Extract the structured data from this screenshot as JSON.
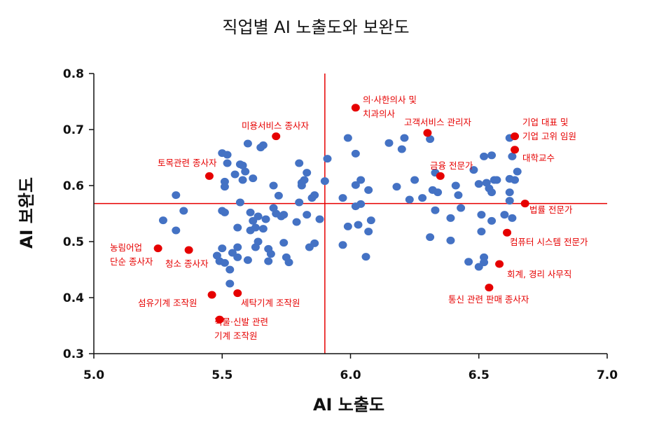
{
  "chart_data": {
    "type": "scatter",
    "title": "직업별 AI 노출도와 보완도",
    "xlabel": "AI 노출도",
    "ylabel": "AI 보완도",
    "xlim": [
      5.0,
      7.0
    ],
    "ylim": [
      0.3,
      0.8
    ],
    "x_ticks": [
      "5.0",
      "5.5",
      "6.0",
      "6.5",
      "7.0"
    ],
    "y_ticks": [
      "0.3",
      "0.4",
      "0.5",
      "0.6",
      "0.7",
      "0.8"
    ],
    "reference_lines": {
      "x": 5.9,
      "y": 0.568
    },
    "grid": false,
    "colors": {
      "points": "#4472c4",
      "highlight": "#e60000",
      "reference": "#e60000",
      "axis": "#111111"
    },
    "series": [
      {
        "points": [
          [
            5.27,
            0.538
          ],
          [
            5.32,
            0.583
          ],
          [
            5.32,
            0.52
          ],
          [
            5.35,
            0.555
          ],
          [
            5.48,
            0.475
          ],
          [
            5.49,
            0.465
          ],
          [
            5.5,
            0.555
          ],
          [
            5.5,
            0.488
          ],
          [
            5.5,
            0.658
          ],
          [
            5.51,
            0.552
          ],
          [
            5.51,
            0.607
          ],
          [
            5.51,
            0.598
          ],
          [
            5.51,
            0.462
          ],
          [
            5.52,
            0.655
          ],
          [
            5.52,
            0.64
          ],
          [
            5.53,
            0.45
          ],
          [
            5.53,
            0.425
          ],
          [
            5.54,
            0.48
          ],
          [
            5.55,
            0.62
          ],
          [
            5.56,
            0.525
          ],
          [
            5.56,
            0.49
          ],
          [
            5.56,
            0.472
          ],
          [
            5.57,
            0.638
          ],
          [
            5.57,
            0.57
          ],
          [
            5.58,
            0.636
          ],
          [
            5.58,
            0.61
          ],
          [
            5.59,
            0.625
          ],
          [
            5.6,
            0.675
          ],
          [
            5.6,
            0.467
          ],
          [
            5.61,
            0.52
          ],
          [
            5.61,
            0.552
          ],
          [
            5.62,
            0.613
          ],
          [
            5.62,
            0.537
          ],
          [
            5.63,
            0.49
          ],
          [
            5.63,
            0.525
          ],
          [
            5.64,
            0.5
          ],
          [
            5.64,
            0.545
          ],
          [
            5.65,
            0.668
          ],
          [
            5.66,
            0.672
          ],
          [
            5.66,
            0.523
          ],
          [
            5.67,
            0.54
          ],
          [
            5.68,
            0.487
          ],
          [
            5.68,
            0.465
          ],
          [
            5.69,
            0.478
          ],
          [
            5.7,
            0.56
          ],
          [
            5.7,
            0.6
          ],
          [
            5.71,
            0.55
          ],
          [
            5.72,
            0.582
          ],
          [
            5.73,
            0.545
          ],
          [
            5.74,
            0.548
          ],
          [
            5.74,
            0.498
          ],
          [
            5.75,
            0.472
          ],
          [
            5.76,
            0.463
          ],
          [
            5.79,
            0.535
          ],
          [
            5.8,
            0.57
          ],
          [
            5.8,
            0.64
          ],
          [
            5.81,
            0.605
          ],
          [
            5.81,
            0.6
          ],
          [
            5.82,
            0.61
          ],
          [
            5.83,
            0.623
          ],
          [
            5.83,
            0.548
          ],
          [
            5.84,
            0.49
          ],
          [
            5.85,
            0.578
          ],
          [
            5.86,
            0.583
          ],
          [
            5.86,
            0.497
          ],
          [
            5.88,
            0.54
          ],
          [
            5.9,
            0.608
          ],
          [
            5.91,
            0.648
          ],
          [
            5.97,
            0.578
          ],
          [
            5.97,
            0.494
          ],
          [
            5.99,
            0.527
          ],
          [
            5.99,
            0.685
          ],
          [
            6.02,
            0.657
          ],
          [
            6.02,
            0.601
          ],
          [
            6.02,
            0.563
          ],
          [
            6.03,
            0.53
          ],
          [
            6.04,
            0.61
          ],
          [
            6.04,
            0.567
          ],
          [
            6.06,
            0.473
          ],
          [
            6.07,
            0.518
          ],
          [
            6.07,
            0.592
          ],
          [
            6.08,
            0.538
          ],
          [
            6.15,
            0.676
          ],
          [
            6.18,
            0.598
          ],
          [
            6.2,
            0.665
          ],
          [
            6.21,
            0.685
          ],
          [
            6.23,
            0.575
          ],
          [
            6.25,
            0.61
          ],
          [
            6.28,
            0.578
          ],
          [
            6.31,
            0.683
          ],
          [
            6.31,
            0.508
          ],
          [
            6.32,
            0.592
          ],
          [
            6.33,
            0.623
          ],
          [
            6.33,
            0.556
          ],
          [
            6.34,
            0.588
          ],
          [
            6.39,
            0.542
          ],
          [
            6.39,
            0.502
          ],
          [
            6.41,
            0.6
          ],
          [
            6.42,
            0.583
          ],
          [
            6.43,
            0.56
          ],
          [
            6.46,
            0.464
          ],
          [
            6.48,
            0.628
          ],
          [
            6.5,
            0.455
          ],
          [
            6.5,
            0.603
          ],
          [
            6.51,
            0.518
          ],
          [
            6.51,
            0.548
          ],
          [
            6.52,
            0.472
          ],
          [
            6.52,
            0.463
          ],
          [
            6.52,
            0.652
          ],
          [
            6.53,
            0.605
          ],
          [
            6.54,
            0.595
          ],
          [
            6.55,
            0.537
          ],
          [
            6.55,
            0.654
          ],
          [
            6.55,
            0.588
          ],
          [
            6.56,
            0.61
          ],
          [
            6.57,
            0.61
          ],
          [
            6.6,
            0.548
          ],
          [
            6.62,
            0.685
          ],
          [
            6.62,
            0.588
          ],
          [
            6.62,
            0.573
          ],
          [
            6.62,
            0.612
          ],
          [
            6.63,
            0.652
          ],
          [
            6.63,
            0.542
          ],
          [
            6.64,
            0.61
          ],
          [
            6.65,
            0.625
          ]
        ]
      },
      {
        "highlighted": true,
        "points": [
          {
            "x": 5.25,
            "y": 0.488,
            "label": [
              "농림어업",
              "단순 종사자"
            ]
          },
          {
            "x": 5.37,
            "y": 0.485,
            "label": [
              "청소 종사자"
            ]
          },
          {
            "x": 5.45,
            "y": 0.617,
            "label": [
              "토목관련 종사자"
            ]
          },
          {
            "x": 5.46,
            "y": 0.405,
            "label": [
              "섬유기계 조작원"
            ]
          },
          {
            "x": 5.49,
            "y": 0.361,
            "label": [
              "직물·신발 관련",
              "기계 조작원"
            ]
          },
          {
            "x": 5.56,
            "y": 0.408,
            "label": [
              "세탁기계 조작원"
            ]
          },
          {
            "x": 5.71,
            "y": 0.688,
            "label": [
              "미용서비스 종사자"
            ]
          },
          {
            "x": 6.02,
            "y": 0.739,
            "label": [
              "의·사한의사 및",
              "치과의사"
            ]
          },
          {
            "x": 6.3,
            "y": 0.694,
            "label": [
              "고객서비스 관리자"
            ]
          },
          {
            "x": 6.35,
            "y": 0.617,
            "label": [
              "금융 전문가"
            ]
          },
          {
            "x": 6.64,
            "y": 0.688,
            "label": [
              "기업 대표 및",
              "기업 고위 임원"
            ]
          },
          {
            "x": 6.64,
            "y": 0.664,
            "label": [
              "대학교수"
            ]
          },
          {
            "x": 6.68,
            "y": 0.568,
            "label": [
              "법률 전문가"
            ]
          },
          {
            "x": 6.61,
            "y": 0.516,
            "label": [
              "컴퓨터 시스템 전문가"
            ]
          },
          {
            "x": 6.58,
            "y": 0.46,
            "label": [
              "회계, 경리 사무직"
            ]
          },
          {
            "x": 6.54,
            "y": 0.418,
            "label": [
              "통신 관련 판매 종사자"
            ]
          }
        ]
      }
    ]
  }
}
